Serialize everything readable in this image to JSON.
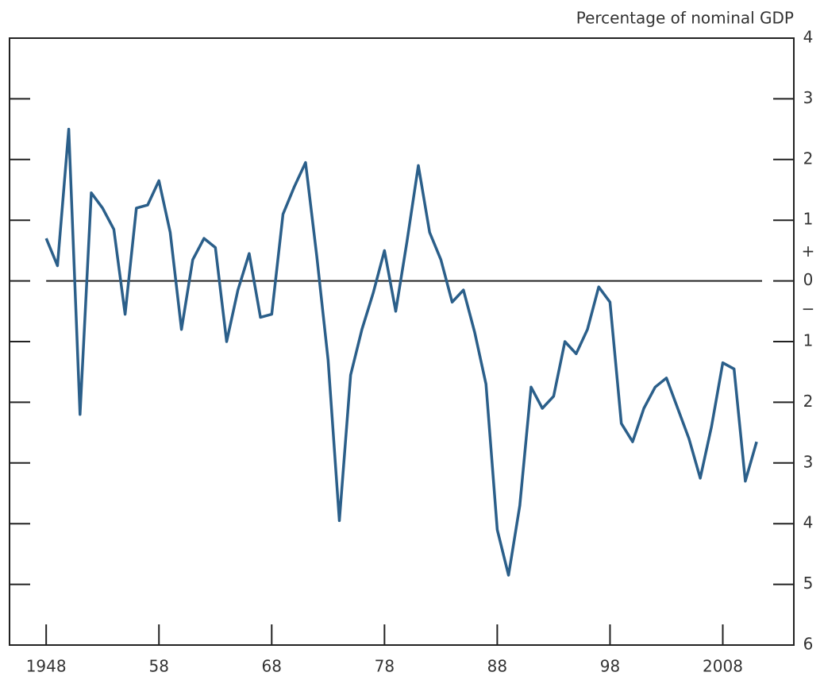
{
  "chart_data": {
    "type": "line",
    "y_axis_label": "Percentage of nominal GDP",
    "x": [
      1948,
      1949,
      1950,
      1951,
      1952,
      1953,
      1954,
      1955,
      1956,
      1957,
      1958,
      1959,
      1960,
      1961,
      1962,
      1963,
      1964,
      1965,
      1966,
      1967,
      1968,
      1969,
      1970,
      1971,
      1972,
      1973,
      1974,
      1975,
      1976,
      1977,
      1978,
      1979,
      1980,
      1981,
      1982,
      1983,
      1984,
      1985,
      1986,
      1987,
      1988,
      1989,
      1990,
      1991,
      1992,
      1993,
      1994,
      1995,
      1996,
      1997,
      1998,
      1999,
      2000,
      2001,
      2002,
      2003,
      2004,
      2005,
      2006,
      2007,
      2008,
      2009,
      2010,
      2011
    ],
    "series": [
      {
        "color": "#2b5f8a",
        "values": [
          0.7,
          0.25,
          2.5,
          -2.2,
          1.45,
          1.2,
          0.85,
          -0.55,
          1.2,
          1.25,
          1.65,
          0.8,
          -0.8,
          0.35,
          0.7,
          0.55,
          -1.0,
          -0.15,
          0.45,
          -0.6,
          -0.55,
          1.1,
          1.55,
          1.95,
          0.4,
          -1.3,
          -3.95,
          -1.55,
          -0.8,
          -0.2,
          0.5,
          -0.5,
          0.65,
          1.9,
          0.8,
          0.35,
          -0.35,
          -0.15,
          -0.85,
          -1.7,
          -4.1,
          -4.85,
          -3.7,
          -1.75,
          -2.1,
          -1.9,
          -1.0,
          -1.2,
          -0.8,
          -0.1,
          -0.35,
          -2.35,
          -2.65,
          -2.1,
          -1.75,
          -1.6,
          -2.1,
          -2.6,
          -3.25,
          -2.4,
          -1.35,
          -1.45,
          -3.3,
          -2.65
        ]
      }
    ],
    "xlim": [
      1944.75,
      2014.3
    ],
    "xticks": [
      1948,
      {
        "value": 1958,
        "label": "58"
      },
      {
        "value": 1968,
        "label": "68"
      },
      {
        "value": 1978,
        "label": "78"
      },
      {
        "value": 1988,
        "label": "88"
      },
      {
        "value": 1998,
        "label": "98"
      },
      2008
    ],
    "ylim": [
      -6,
      4
    ],
    "yticks": [
      4,
      3,
      2,
      1,
      0,
      {
        "value": -1,
        "label": "1"
      },
      {
        "value": -2,
        "label": "2"
      },
      {
        "value": -3,
        "label": "3"
      },
      {
        "value": -4,
        "label": "4"
      },
      {
        "value": -5,
        "label": "5"
      },
      {
        "value": -6,
        "label": "6"
      }
    ],
    "sign_labels": [
      "+",
      "−"
    ],
    "zero_line": true,
    "grid": false
  }
}
